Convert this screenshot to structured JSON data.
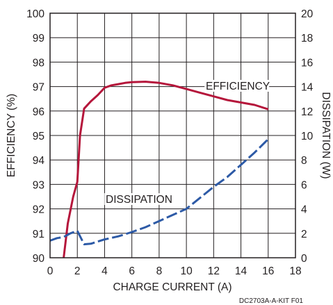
{
  "chart_data": {
    "type": "line",
    "xlabel": "CHARGE CURRENT (A)",
    "ylabel_left": "EFFICIENCY (%)",
    "ylabel_right": "DISSIPATION (W)",
    "x_ticks": [
      "0",
      "2",
      "4",
      "6",
      "8",
      "10",
      "12",
      "14",
      "16",
      "18"
    ],
    "y_left_ticks": [
      "90",
      "91",
      "92",
      "93",
      "94",
      "95",
      "96",
      "97",
      "98",
      "99",
      "100"
    ],
    "y_right_ticks": [
      "0",
      "2",
      "4",
      "6",
      "8",
      "10",
      "12",
      "14",
      "16",
      "18",
      "20"
    ],
    "xlim": [
      0,
      18
    ],
    "ylim_left": [
      90,
      100
    ],
    "ylim_right": [
      0,
      20
    ],
    "grid": true,
    "figure_id": "DC2703A-A-KIT F01",
    "series": [
      {
        "name": "EFFICIENCY",
        "axis": "left",
        "color": "#b5163b",
        "style": "solid",
        "x": [
          1.0,
          1.3,
          1.7,
          2.0,
          2.2,
          2.5,
          3.0,
          3.5,
          4.0,
          4.5,
          5.0,
          5.5,
          6.0,
          7.0,
          8.0,
          9.0,
          10.0,
          11.0,
          12.0,
          13.0,
          14.0,
          15.0,
          16.0
        ],
        "y": [
          90.0,
          91.4,
          92.5,
          93.1,
          95.0,
          96.1,
          96.4,
          96.65,
          96.95,
          97.05,
          97.1,
          97.15,
          97.18,
          97.2,
          97.15,
          97.05,
          96.9,
          96.75,
          96.6,
          96.45,
          96.35,
          96.25,
          96.07
        ]
      },
      {
        "name": "DISSIPATION",
        "axis": "right",
        "color": "#2d5aa6",
        "style": "dashed",
        "x": [
          0.0,
          0.5,
          1.0,
          1.5,
          2.0,
          2.5,
          3.0,
          4.0,
          5.0,
          6.0,
          7.0,
          8.0,
          9.0,
          10.0,
          11.0,
          12.0,
          13.0,
          14.0,
          15.0,
          16.0
        ],
        "y": [
          1.4,
          1.6,
          1.7,
          2.0,
          2.2,
          1.1,
          1.15,
          1.5,
          1.75,
          2.1,
          2.5,
          3.0,
          3.5,
          4.0,
          4.9,
          5.8,
          6.6,
          7.6,
          8.6,
          9.7
        ]
      }
    ]
  }
}
